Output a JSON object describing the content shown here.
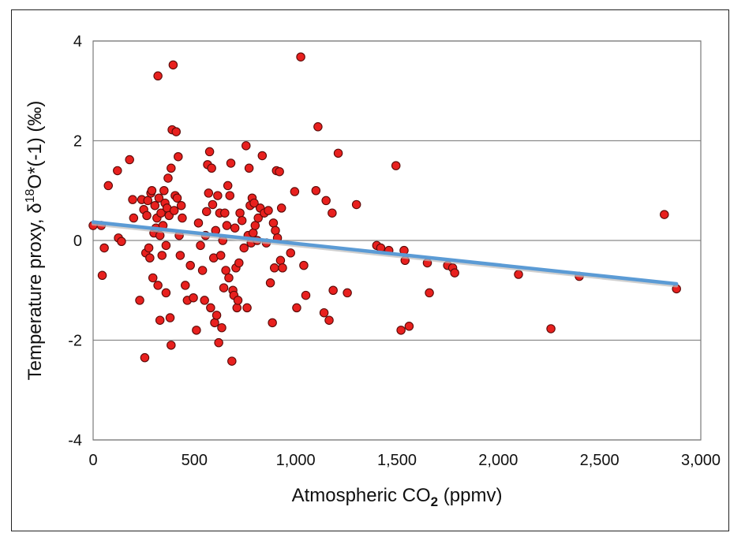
{
  "chart_data": {
    "type": "scatter",
    "xlabel_main": "Atmospheric CO",
    "xlabel_sub": "2",
    "xlabel_suffix": " (ppmv)",
    "ylabel_prefix": "Temperature proxy, δ",
    "ylabel_sup": "18",
    "ylabel_suffix": "O*(-1) (‰)",
    "xlim": [
      0,
      3000
    ],
    "ylim": [
      -4,
      4
    ],
    "x_ticks": [
      0,
      500,
      1000,
      1500,
      2000,
      2500,
      3000
    ],
    "x_tick_labels": [
      "0",
      "500",
      "1,000",
      "1,500",
      "2,000",
      "2,500",
      "3,000"
    ],
    "y_ticks": [
      -4,
      -2,
      0,
      2,
      4
    ],
    "y_tick_labels": [
      "-4",
      "-2",
      "0",
      "2",
      "4"
    ],
    "grid": "horizontal",
    "trendline": {
      "x": [
        0,
        2880
      ],
      "y": [
        0.37,
        -0.87
      ],
      "color": "#5b9bd5"
    },
    "marker_color": "#e8201e",
    "points": [
      [
        0,
        0.3
      ],
      [
        40,
        0.3
      ],
      [
        45,
        -0.7
      ],
      [
        55,
        -0.15
      ],
      [
        75,
        1.1
      ],
      [
        120,
        1.4
      ],
      [
        125,
        0.05
      ],
      [
        140,
        -0.02
      ],
      [
        180,
        1.62
      ],
      [
        195,
        0.82
      ],
      [
        200,
        0.45
      ],
      [
        230,
        -1.2
      ],
      [
        240,
        0.82
      ],
      [
        250,
        0.62
      ],
      [
        255,
        -2.35
      ],
      [
        260,
        -0.25
      ],
      [
        265,
        0.5
      ],
      [
        270,
        0.8
      ],
      [
        275,
        -0.15
      ],
      [
        280,
        -0.35
      ],
      [
        285,
        0.95
      ],
      [
        290,
        1.0
      ],
      [
        295,
        -0.75
      ],
      [
        300,
        0.15
      ],
      [
        305,
        0.7
      ],
      [
        310,
        0.25
      ],
      [
        315,
        0.45
      ],
      [
        320,
        3.3
      ],
      [
        325,
        0.85
      ],
      [
        330,
        0.1
      ],
      [
        335,
        0.55
      ],
      [
        340,
        -0.3
      ],
      [
        345,
        0.3
      ],
      [
        350,
        1.0
      ],
      [
        355,
        0.75
      ],
      [
        360,
        -0.1
      ],
      [
        365,
        0.65
      ],
      [
        370,
        1.25
      ],
      [
        375,
        0.5
      ],
      [
        380,
        -1.55
      ],
      [
        385,
        1.45
      ],
      [
        390,
        2.22
      ],
      [
        395,
        3.52
      ],
      [
        400,
        0.6
      ],
      [
        405,
        0.9
      ],
      [
        410,
        2.18
      ],
      [
        415,
        0.85
      ],
      [
        420,
        1.68
      ],
      [
        425,
        0.1
      ],
      [
        430,
        -0.3
      ],
      [
        435,
        0.7
      ],
      [
        440,
        0.45
      ],
      [
        320,
        -0.9
      ],
      [
        330,
        -1.6
      ],
      [
        360,
        -1.05
      ],
      [
        385,
        -2.1
      ],
      [
        455,
        -0.9
      ],
      [
        465,
        -1.2
      ],
      [
        480,
        -0.5
      ],
      [
        495,
        -1.15
      ],
      [
        510,
        -1.8
      ],
      [
        520,
        0.35
      ],
      [
        530,
        -0.1
      ],
      [
        540,
        -0.6
      ],
      [
        550,
        -1.2
      ],
      [
        555,
        0.1
      ],
      [
        560,
        0.58
      ],
      [
        565,
        1.52
      ],
      [
        570,
        0.95
      ],
      [
        575,
        1.78
      ],
      [
        580,
        -1.35
      ],
      [
        585,
        1.45
      ],
      [
        590,
        0.72
      ],
      [
        595,
        -0.35
      ],
      [
        600,
        -1.65
      ],
      [
        605,
        0.2
      ],
      [
        610,
        -1.5
      ],
      [
        615,
        0.9
      ],
      [
        620,
        -2.05
      ],
      [
        625,
        0.55
      ],
      [
        630,
        -0.3
      ],
      [
        635,
        -1.75
      ],
      [
        640,
        0.0
      ],
      [
        645,
        -0.95
      ],
      [
        650,
        0.55
      ],
      [
        655,
        -0.6
      ],
      [
        660,
        0.3
      ],
      [
        665,
        1.1
      ],
      [
        670,
        -0.75
      ],
      [
        675,
        0.9
      ],
      [
        680,
        1.55
      ],
      [
        685,
        -2.42
      ],
      [
        690,
        -1.0
      ],
      [
        695,
        -1.1
      ],
      [
        700,
        0.25
      ],
      [
        705,
        -0.55
      ],
      [
        710,
        -1.35
      ],
      [
        715,
        -1.2
      ],
      [
        720,
        -0.45
      ],
      [
        725,
        0.55
      ],
      [
        735,
        0.4
      ],
      [
        745,
        -0.15
      ],
      [
        755,
        1.9
      ],
      [
        760,
        -1.35
      ],
      [
        765,
        0.1
      ],
      [
        770,
        1.45
      ],
      [
        775,
        0.7
      ],
      [
        780,
        -0.05
      ],
      [
        785,
        0.85
      ],
      [
        790,
        0.15
      ],
      [
        795,
        0.75
      ],
      [
        800,
        0.3
      ],
      [
        810,
        0.0
      ],
      [
        815,
        0.45
      ],
      [
        825,
        0.65
      ],
      [
        835,
        1.7
      ],
      [
        845,
        0.55
      ],
      [
        855,
        -0.05
      ],
      [
        865,
        0.6
      ],
      [
        875,
        -0.85
      ],
      [
        885,
        -1.65
      ],
      [
        890,
        0.35
      ],
      [
        895,
        -0.55
      ],
      [
        900,
        0.2
      ],
      [
        905,
        1.4
      ],
      [
        910,
        0.05
      ],
      [
        920,
        1.38
      ],
      [
        925,
        -0.4
      ],
      [
        930,
        0.65
      ],
      [
        935,
        -0.55
      ],
      [
        975,
        -0.25
      ],
      [
        995,
        0.98
      ],
      [
        1005,
        -1.35
      ],
      [
        1025,
        3.68
      ],
      [
        1040,
        -0.5
      ],
      [
        1050,
        -1.1
      ],
      [
        1100,
        1.0
      ],
      [
        1110,
        2.28
      ],
      [
        1140,
        -1.45
      ],
      [
        1150,
        0.8
      ],
      [
        1165,
        -1.6
      ],
      [
        1180,
        0.55
      ],
      [
        1185,
        -1.0
      ],
      [
        1210,
        1.75
      ],
      [
        1255,
        -1.05
      ],
      [
        1300,
        0.72
      ],
      [
        1400,
        -0.1
      ],
      [
        1420,
        -0.15
      ],
      [
        1460,
        -0.2
      ],
      [
        1495,
        1.5
      ],
      [
        1520,
        -1.8
      ],
      [
        1535,
        -0.2
      ],
      [
        1540,
        -0.4
      ],
      [
        1560,
        -1.72
      ],
      [
        1650,
        -0.45
      ],
      [
        1660,
        -1.05
      ],
      [
        1750,
        -0.5
      ],
      [
        1775,
        -0.55
      ],
      [
        1785,
        -0.65
      ],
      [
        2100,
        -0.68
      ],
      [
        2260,
        -1.77
      ],
      [
        2400,
        -0.72
      ],
      [
        2820,
        0.52
      ],
      [
        2880,
        -0.97
      ]
    ]
  }
}
